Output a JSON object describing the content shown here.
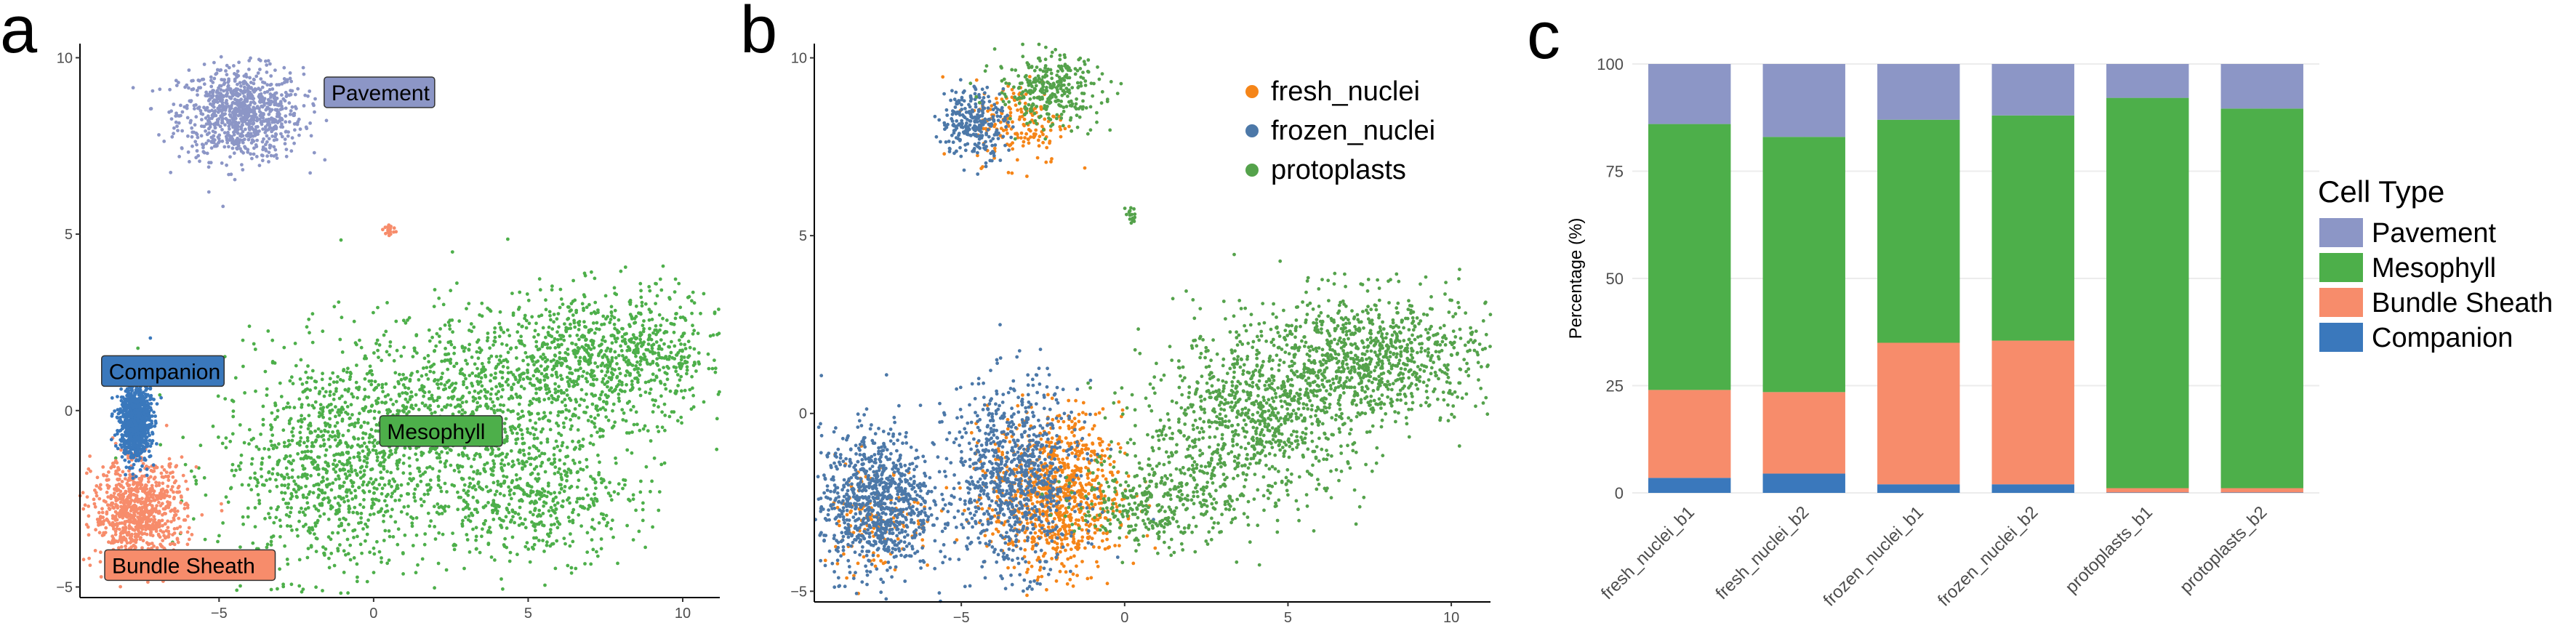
{
  "panels": {
    "a": {
      "letter": "a"
    },
    "b": {
      "letter": "b"
    },
    "c": {
      "letter": "c"
    }
  },
  "chart_data": [
    {
      "panel": "a",
      "type": "scatter",
      "title": "",
      "xlabel": "",
      "ylabel": "",
      "xlim": [
        -9.5,
        11.2
      ],
      "ylim": [
        -5.3,
        10.4
      ],
      "xticks": [
        -5,
        0,
        5,
        10
      ],
      "yticks": [
        -5,
        0,
        5,
        10
      ],
      "legend": "none",
      "series": [
        {
          "label": "Pavement",
          "color": "#8c96c6",
          "clusters": [
            {
              "cx": -4.3,
              "cy": 8.4,
              "sx": 1.0,
              "sy": 0.65,
              "weight": 1
            }
          ]
        },
        {
          "label": "Mesophyll",
          "color": "#4daf4a",
          "clusters": [
            {
              "cx": -1.2,
              "cy": -1.6,
              "sx": 1.9,
              "sy": 1.6,
              "weight": 1.2
            },
            {
              "cx": 3.5,
              "cy": 0.2,
              "sx": 2.3,
              "sy": 1.3,
              "weight": 1
            },
            {
              "cx": 7.8,
              "cy": 1.6,
              "sx": 1.9,
              "sy": 0.9,
              "weight": 0.9
            },
            {
              "cx": 5.2,
              "cy": -2.6,
              "sx": 1.7,
              "sy": 0.8,
              "weight": 0.5
            }
          ]
        },
        {
          "label": "Bundle Sheath",
          "color": "#f78c6b",
          "clusters": [
            {
              "cx": -7.6,
              "cy": -2.9,
              "sx": 0.75,
              "sy": 0.75,
              "weight": 1
            },
            {
              "cx": 0.5,
              "cy": 5.1,
              "sx": 0.1,
              "sy": 0.1,
              "weight": 0.02
            }
          ]
        },
        {
          "label": "Companion",
          "color": "#3a78bc",
          "clusters": [
            {
              "cx": -7.7,
              "cy": -0.3,
              "sx": 0.25,
              "sy": 0.55,
              "weight": 1
            }
          ]
        }
      ],
      "annotations": [
        {
          "text": "Pavement",
          "x": -1.6,
          "y": 9.0,
          "fill": "#8c96c6"
        },
        {
          "text": "Companion",
          "x": -8.8,
          "y": 1.1,
          "fill": "#3a78bc"
        },
        {
          "text": "Mesophyll",
          "x": 0.2,
          "y": -0.6,
          "fill": "#4daf4a"
        },
        {
          "text": "Bundle Sheath",
          "x": -8.7,
          "y": -4.4,
          "fill": "#f78c6b"
        }
      ]
    },
    {
      "panel": "b",
      "type": "scatter",
      "title": "",
      "xlabel": "",
      "ylabel": "",
      "xlim": [
        -9.5,
        11.2
      ],
      "ylim": [
        -5.3,
        10.4
      ],
      "xticks": [
        -5,
        0,
        5,
        10
      ],
      "yticks": [
        -5,
        0,
        5,
        10
      ],
      "legend": "top-right",
      "series": [
        {
          "name": "fresh_nuclei",
          "color": "#f58518",
          "clusters": [
            {
              "cx": -2.1,
              "cy": -2.3,
              "sx": 1.0,
              "sy": 1.1,
              "weight": 1
            },
            {
              "cx": -3.2,
              "cy": 8.2,
              "sx": 0.7,
              "sy": 0.6,
              "weight": 0.2
            },
            {
              "cx": -7.6,
              "cy": -2.9,
              "sx": 0.9,
              "sy": 0.8,
              "weight": 0.15
            }
          ]
        },
        {
          "name": "frozen_nuclei",
          "color": "#4c78a8",
          "clusters": [
            {
              "cx": -7.6,
              "cy": -2.5,
              "sx": 0.85,
              "sy": 1.0,
              "weight": 1
            },
            {
              "cx": -3.4,
              "cy": -1.8,
              "sx": 1.0,
              "sy": 1.3,
              "weight": 1
            },
            {
              "cx": -4.6,
              "cy": 8.2,
              "sx": 0.5,
              "sy": 0.5,
              "weight": 0.3
            }
          ]
        },
        {
          "name": "protoplasts",
          "color": "#54a24b",
          "clusters": [
            {
              "cx": 4.0,
              "cy": -0.2,
              "sx": 1.7,
              "sy": 1.2,
              "weight": 1
            },
            {
              "cx": 7.6,
              "cy": 1.6,
              "sx": 1.8,
              "sy": 0.9,
              "weight": 1
            },
            {
              "cx": -2.3,
              "cy": 9.1,
              "sx": 0.8,
              "sy": 0.5,
              "weight": 0.35
            },
            {
              "cx": 0.2,
              "cy": 5.6,
              "sx": 0.08,
              "sy": 0.15,
              "weight": 0.02
            },
            {
              "cx": 1.0,
              "cy": -2.4,
              "sx": 1.2,
              "sy": 0.7,
              "weight": 0.4
            }
          ]
        }
      ]
    },
    {
      "panel": "c",
      "type": "bar",
      "stacked": true,
      "title": "",
      "xlabel": "",
      "ylabel": "Percentage (%)",
      "ylim": [
        0,
        100
      ],
      "yticks": [
        0,
        25,
        50,
        75,
        100
      ],
      "grid": true,
      "legend": "right",
      "legend_title": "Cell Type",
      "categories": [
        "fresh_nuclei_b1",
        "fresh_nuclei_b2",
        "frozen_nuclei_b1",
        "frozen_nuclei_b2",
        "protoplasts_b1",
        "protoplasts_b2"
      ],
      "series": [
        {
          "name": "Companion",
          "color": "#3a78bc",
          "values": [
            3.5,
            4.5,
            2.0,
            2.0,
            0.1,
            0.1
          ]
        },
        {
          "name": "Bundle Sheath",
          "color": "#f78c6b",
          "values": [
            20.5,
            19.0,
            33.0,
            33.5,
            1.0,
            1.0
          ]
        },
        {
          "name": "Mesophyll",
          "color": "#4daf4a",
          "values": [
            62.0,
            59.5,
            52.0,
            52.5,
            91.0,
            88.5
          ]
        },
        {
          "name": "Pavement",
          "color": "#8c96c6",
          "values": [
            14.0,
            17.0,
            13.0,
            12.0,
            7.9,
            10.4
          ]
        }
      ],
      "legend_order": [
        "Pavement",
        "Mesophyll",
        "Bundle Sheath",
        "Companion"
      ]
    }
  ]
}
